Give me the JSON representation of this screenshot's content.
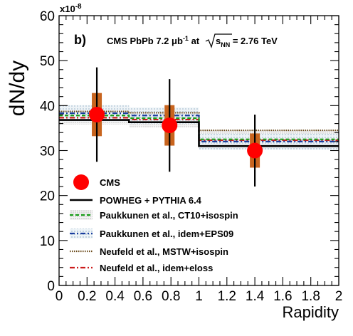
{
  "chart_data": {
    "type": "line",
    "xlabel": "Rapidity",
    "ylabel": "dN/dy",
    "y_exponent": "x10",
    "y_exponent_power": "-8",
    "panel_label": "b)",
    "annotation": {
      "prefix": "CMS PbPb 7.2 ",
      "unit": "μb",
      "unit_power": "-1",
      "mid": " at",
      "sqrt_s": "s",
      "sqrt_sub": "NN",
      "suffix": " = 2.76 TeV"
    },
    "xlim": [
      0,
      2
    ],
    "ylim": [
      0,
      60
    ],
    "x_ticks": [
      "0",
      "0.2",
      "0.4",
      "0.6",
      "0.8",
      "1",
      "1.2",
      "1.4",
      "1.6",
      "1.8",
      "2"
    ],
    "y_ticks": [
      "0",
      "10",
      "20",
      "30",
      "40",
      "50",
      "60"
    ],
    "bin_edges": [
      0,
      0.5,
      1.0,
      2.0
    ],
    "cms": {
      "name": "CMS",
      "color": "#ff0000",
      "syst_color": "#c8641e",
      "x": [
        0.27,
        0.79,
        1.4
      ],
      "y": [
        38.0,
        35.6,
        30.0
      ],
      "stat_err": [
        10.5,
        10.3,
        8.0
      ],
      "syst_err": [
        4.8,
        4.5,
        3.8
      ]
    },
    "theory": [
      {
        "name": "POWHEG + PYTHIA 6.4",
        "color": "#000000",
        "style": "solid",
        "values": [
          36.8,
          36.3,
          31.0
        ]
      },
      {
        "name": "Paukkunen et al., CT10+isospin",
        "color": "#1a9e1a",
        "style": "dashed",
        "values": [
          37.8,
          37.2,
          32.5
        ],
        "band": 2.0
      },
      {
        "name": "Paukkunen et al., idem+EPS09",
        "color": "#1a3d9e",
        "style": "dashdot",
        "values": [
          38.3,
          37.8,
          32.0
        ],
        "band": 1.8
      },
      {
        "name": "Neufeld et al., MSTW+isospin",
        "color": "#6b4a1a",
        "style": "dotted",
        "values": [
          38.7,
          38.4,
          34.5
        ]
      },
      {
        "name": "Neufeld et al., idem+eloss",
        "color": "#cc1a1a",
        "style": "dashdot",
        "values": [
          37.3,
          36.9,
          32.3
        ]
      }
    ]
  }
}
